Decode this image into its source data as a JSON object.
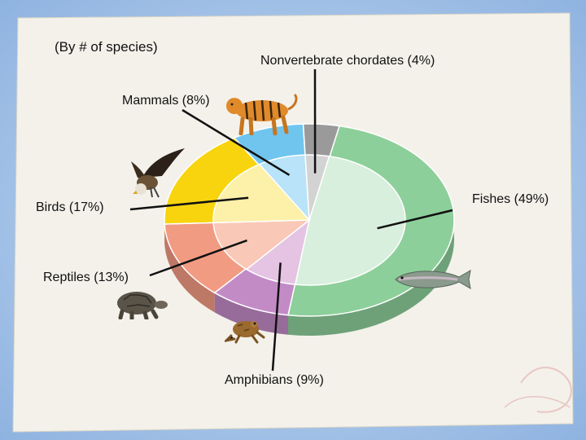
{
  "subtitle": "(By # of species)",
  "chart_data": {
    "type": "pie",
    "title": "",
    "subtitle": "(By # of species)",
    "slices": [
      {
        "name": "Fishes",
        "label": "Fishes (49%)",
        "value": 49,
        "color": "#8dcf9a",
        "inner_color": "#d7efdc"
      },
      {
        "name": "Amphibians",
        "label": "Amphibians (9%)",
        "value": 9,
        "color": "#c28bc6",
        "inner_color": "#e4c3e3"
      },
      {
        "name": "Reptiles",
        "label": "Reptiles (13%)",
        "value": 13,
        "color": "#f29b83",
        "inner_color": "#f9c8b6"
      },
      {
        "name": "Birds",
        "label": "Birds (17%)",
        "value": 17,
        "color": "#f8d40f",
        "inner_color": "#fdf0a8"
      },
      {
        "name": "Mammals",
        "label": "Mammals (8%)",
        "value": 8,
        "color": "#70c5ef",
        "inner_color": "#b8e3f8"
      },
      {
        "name": "Nonvertebrate chordates",
        "label": "Nonvertebrate chordates (4%)",
        "value": 4,
        "color": "#9a9a9a",
        "inner_color": "#d3d3d3"
      }
    ]
  },
  "icons": {
    "mammals": "tiger-icon",
    "birds": "eagle-icon",
    "reptiles": "tortoise-icon",
    "amphibians": "frog-icon",
    "fishes": "fish-icon"
  },
  "colors": {
    "background": "#9fbfe6",
    "paper": "#f3f1ea",
    "leader_line": "#111111"
  }
}
